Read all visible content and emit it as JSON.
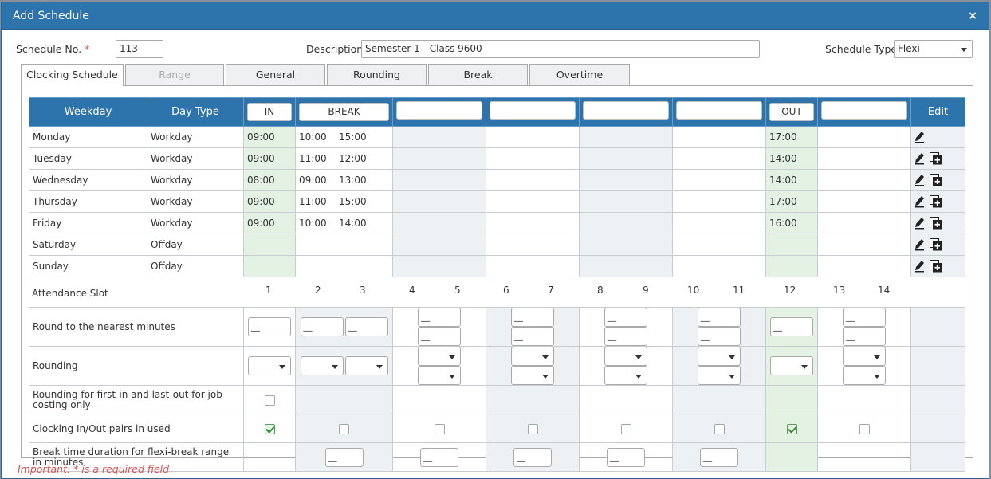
{
  "dialog": {
    "title": "Add Schedule",
    "close_label": "×"
  },
  "form": {
    "schedule_no_label": "Schedule No.",
    "required_mark": "*",
    "schedule_no_value": "113",
    "description_label": "Description",
    "description_value": "Semester 1 - Class 9600",
    "schedule_type_label": "Schedule Type",
    "schedule_type_value": "Flexi"
  },
  "tabs": [
    {
      "label": "Clocking Schedule",
      "active": true
    },
    {
      "label": "Range",
      "disabled": true
    },
    {
      "label": "General"
    },
    {
      "label": "Rounding"
    },
    {
      "label": "Break"
    },
    {
      "label": "Overtime"
    }
  ],
  "grid": {
    "headers": {
      "weekday": "Weekday",
      "day_type": "Day Type",
      "in": "IN",
      "break": "BREAK",
      "out": "OUT",
      "edit": "Edit"
    },
    "rows": [
      {
        "weekday": "Monday",
        "day_type": "Workday",
        "in": "09:00",
        "break_start": "10:00",
        "break_end": "15:00",
        "out": "17:00"
      },
      {
        "weekday": "Tuesday",
        "day_type": "Workday",
        "in": "09:00",
        "break_start": "11:00",
        "break_end": "12:00",
        "out": "14:00"
      },
      {
        "weekday": "Wednesday",
        "day_type": "Workday",
        "in": "08:00",
        "break_start": "09:00",
        "break_end": "13:00",
        "out": "14:00"
      },
      {
        "weekday": "Thursday",
        "day_type": "Workday",
        "in": "09:00",
        "break_start": "11:00",
        "break_end": "15:00",
        "out": "17:00"
      },
      {
        "weekday": "Friday",
        "day_type": "Workday",
        "in": "09:00",
        "break_start": "10:00",
        "break_end": "14:00",
        "out": "16:00"
      },
      {
        "weekday": "Saturday",
        "day_type": "Offday",
        "in": "",
        "break_start": "",
        "break_end": "",
        "out": ""
      },
      {
        "weekday": "Sunday",
        "day_type": "Offday",
        "in": "",
        "break_start": "",
        "break_end": "",
        "out": ""
      }
    ]
  },
  "slots": {
    "label": "Attendance Slot",
    "numbers": [
      "1",
      "2",
      "3",
      "4",
      "5",
      "6",
      "7",
      "8",
      "9",
      "10",
      "11",
      "12",
      "13",
      "14"
    ]
  },
  "settings": {
    "round_nearest": "Round to the nearest minutes",
    "rounding": "Rounding",
    "rounding_first_last": "Rounding for first-in and last-out for job costing only",
    "clocking_pairs": "Clocking In/Out pairs in used",
    "break_duration": "Break time duration for flexi-break range in minutes",
    "input_placeholder": "__"
  },
  "footer": {
    "important": "Important: * is a required field"
  },
  "icons": {
    "close": "close-icon",
    "edit": "pencil-icon",
    "copy": "copy-add-icon",
    "check": "checkmark-icon"
  }
}
